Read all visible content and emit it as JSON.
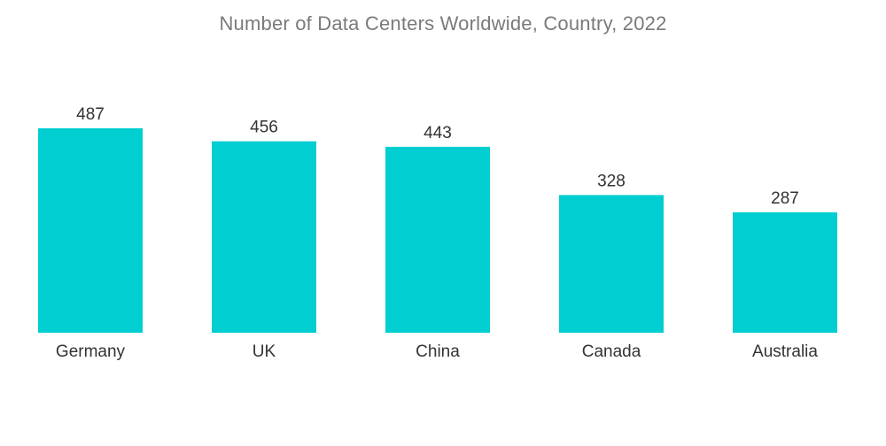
{
  "chart_data": {
    "type": "bar",
    "title": "Number of Data Centers Worldwide, Country, 2022",
    "categories": [
      "Germany",
      "UK",
      "China",
      "Canada",
      "Australia"
    ],
    "values": [
      487,
      456,
      443,
      328,
      287
    ],
    "xlabel": "",
    "ylabel": "",
    "ylim": [
      0,
      487
    ],
    "grid": false,
    "legend": "none",
    "bar_color": "#00CED1"
  }
}
